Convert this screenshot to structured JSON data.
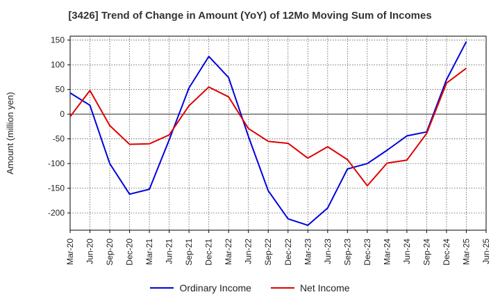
{
  "chart_data": {
    "type": "line",
    "title": "[3426]  Trend of Change in Amount (YoY) of 12Mo Moving Sum of Incomes",
    "ylabel": "Amount (million yen)",
    "ylim": [
      -235,
      158
    ],
    "yticks": [
      150,
      100,
      50,
      0,
      -50,
      -100,
      -150,
      -200
    ],
    "grid": true,
    "legend_position": "bottom",
    "categories": [
      "Mar-20",
      "Jun-20",
      "Sep-20",
      "Dec-20",
      "Mar-21",
      "Jun-21",
      "Sep-21",
      "Dec-21",
      "Mar-22",
      "Jun-22",
      "Sep-22",
      "Dec-22",
      "Mar-23",
      "Jun-23",
      "Sep-23",
      "Dec-23",
      "Mar-24",
      "Jun-24",
      "Sep-24",
      "Dec-24",
      "Mar-25",
      "Jun-25"
    ],
    "series": [
      {
        "name": "Ordinary Income",
        "color": "#0000dd",
        "values": [
          43,
          18,
          -100,
          -162,
          -152,
          -52,
          53,
          117,
          74,
          -45,
          -155,
          -212,
          -225,
          -190,
          -111,
          -100,
          -73,
          -44,
          -36,
          70,
          147,
          null
        ]
      },
      {
        "name": "Net Income",
        "color": "#dd0000",
        "values": [
          -5,
          48,
          -23,
          -61,
          -60,
          -42,
          17,
          55,
          35,
          -29,
          -55,
          -59,
          -89,
          -66,
          -92,
          -145,
          -99,
          -93,
          -39,
          63,
          93,
          null
        ]
      }
    ]
  }
}
